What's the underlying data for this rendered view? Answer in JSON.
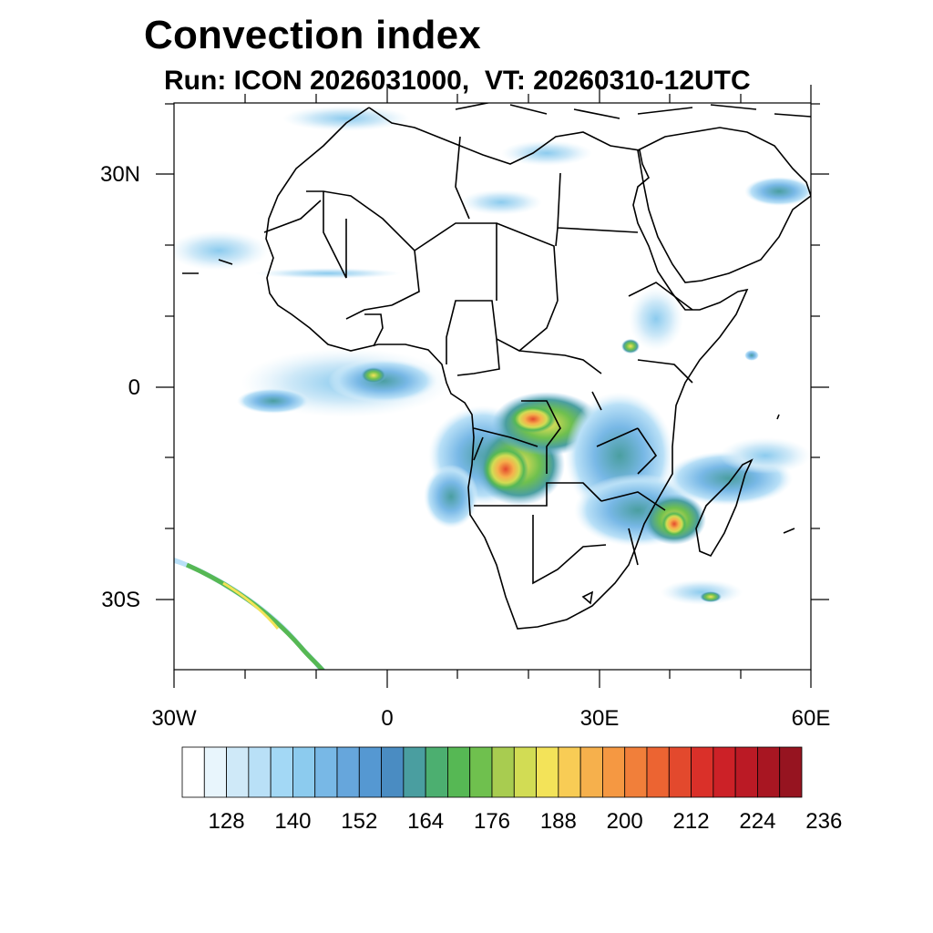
{
  "title": "Convection index",
  "subtitle": "Run: ICON 2026031000,  VT: 20260310-12UTC",
  "axes": {
    "lat_labels": [
      "30N",
      "0",
      "30S"
    ],
    "lon_labels": [
      "30W",
      "0",
      "30E",
      "60E"
    ]
  },
  "colorbar": {
    "labels": [
      "128",
      "140",
      "152",
      "164",
      "176",
      "188",
      "200",
      "212",
      "224",
      "236"
    ],
    "colors": [
      "#ffffff",
      "#e8f5fc",
      "#cfe9f8",
      "#b9e0f7",
      "#a3d8f5",
      "#8ccbee",
      "#78b8e6",
      "#66a6dc",
      "#5598d2",
      "#4a8cc2",
      "#4a9ea0",
      "#4caf70",
      "#56b854",
      "#6fc04e",
      "#a8cc50",
      "#d2dc54",
      "#f3e359",
      "#f8cc55",
      "#f6b04c",
      "#f59842",
      "#f17f3a",
      "#ec6432",
      "#e3492d",
      "#da3029",
      "#cc2127",
      "#bb1a25",
      "#a81622",
      "#961420"
    ]
  }
}
